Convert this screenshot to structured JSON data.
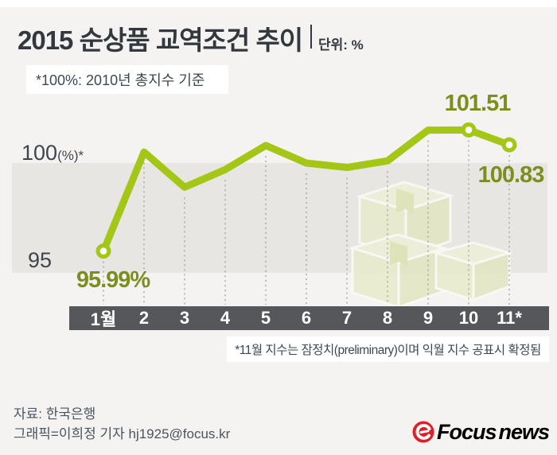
{
  "chart_data": {
    "type": "line",
    "title": "2015 순상품 교역조건 추이",
    "unit_label": "단위: %",
    "baseline_note": "*100%: 2010년 총지수 기준",
    "footnote": "*11월 지수는 잠정치(preliminary)이며 익월 지수 공표시 확정됨",
    "categories": [
      "1월",
      "2",
      "3",
      "4",
      "5",
      "6",
      "7",
      "8",
      "9",
      "10",
      "11*"
    ],
    "values": [
      95.99,
      100.5,
      98.9,
      99.7,
      100.8,
      100.0,
      99.8,
      100.1,
      101.5,
      101.51,
      100.83
    ],
    "point_labels": [
      {
        "index": 0,
        "text": "95.99%"
      },
      {
        "index": 9,
        "text": "101.51"
      },
      {
        "index": 10,
        "text": "100.83"
      }
    ],
    "y_labels": {
      "top_main": "100",
      "top_suffix": "(%)*",
      "bottom": "95"
    },
    "band": {
      "top": 100,
      "bottom": 95
    },
    "ylim": [
      94,
      102
    ],
    "grid": "dashed-vertical-per-month",
    "legend": "none",
    "colors": {
      "line": "#a3c617",
      "marker_center": "#ffffff",
      "value_label": "#7c8e1e",
      "band": "#e7e6e3",
      "axis_bar": "#56575b",
      "axis_text": "#ffffff",
      "dash": "#a0a09e"
    }
  },
  "footer": {
    "source": "자료: 한국은행",
    "credit": "그래픽=이희정 기자 hj1925@focus.kr",
    "logo": {
      "icon": "focus-news-icon",
      "text_red": "Focus",
      "text_gray": "news",
      "red": "#dd1f26",
      "gray": "#8b8c8e"
    }
  },
  "colors": {
    "background": "#f4f3f1",
    "text_dark": "#32383e",
    "note_text": "#3c4954",
    "footer_text": "#49555f"
  }
}
